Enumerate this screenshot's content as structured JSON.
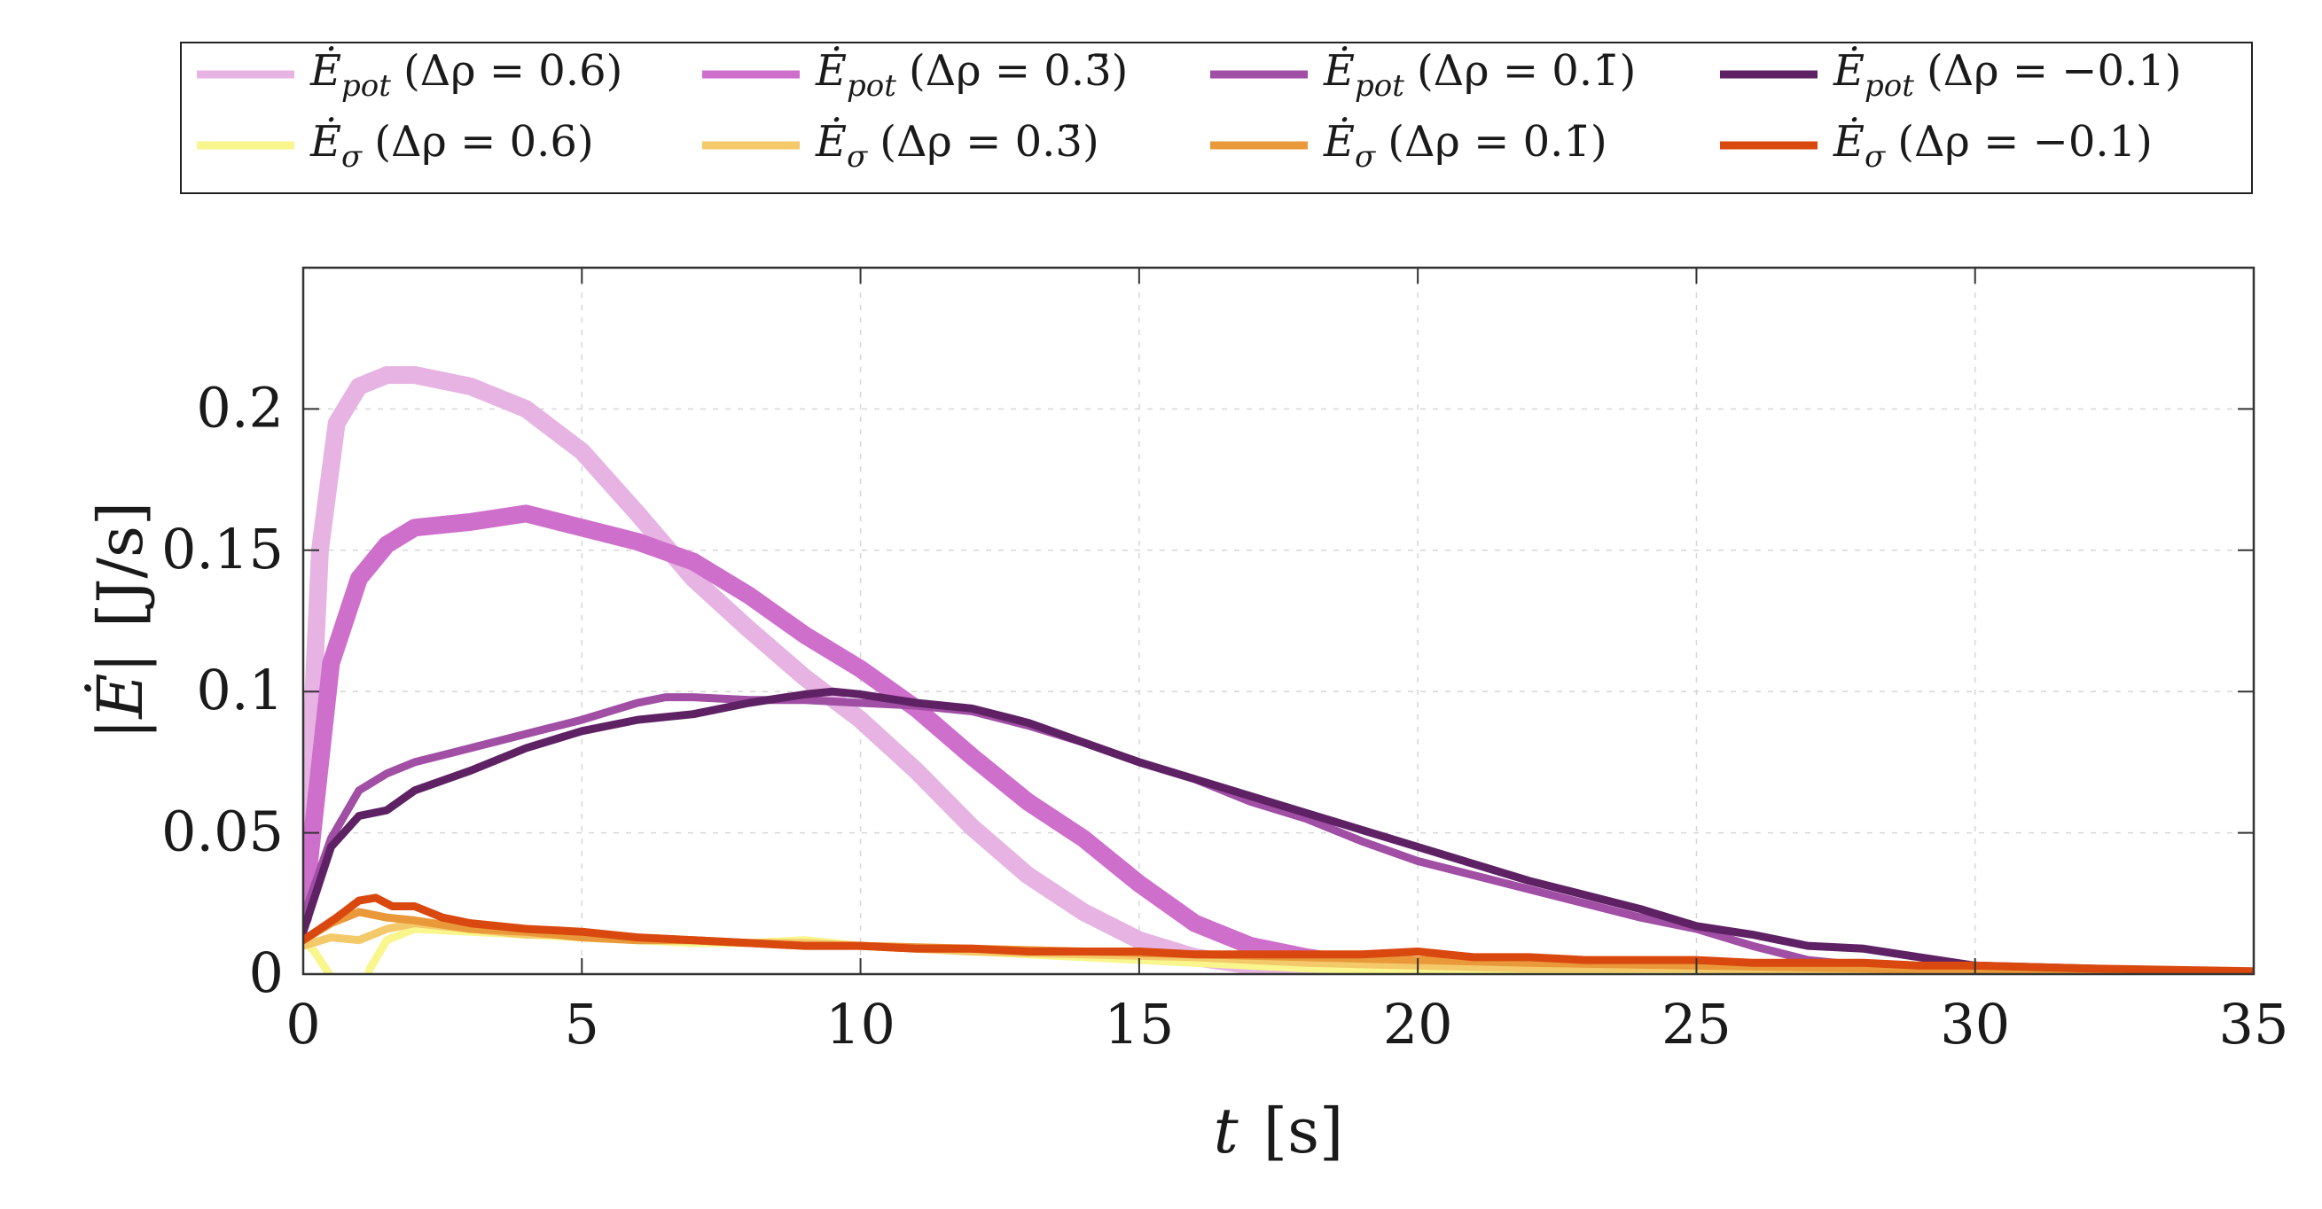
{
  "chart_data": {
    "type": "line",
    "title": "",
    "xlabel": "t [s]",
    "ylabel": "|Ė| [J/s]",
    "xlim": [
      0,
      35
    ],
    "ylim": [
      0,
      0.25
    ],
    "xticks": [
      0,
      5,
      10,
      15,
      20,
      25,
      30,
      35
    ],
    "xtick_labels": [
      "0",
      "5",
      "10",
      "15",
      "20",
      "25",
      "30",
      "35"
    ],
    "yticks": [
      0,
      0.05,
      0.1,
      0.15,
      0.2
    ],
    "ytick_labels": [
      "0",
      "0.05",
      "0.1",
      "0.15",
      "0.2"
    ],
    "grid": true,
    "legend_position": "top",
    "series": [
      {
        "name": "Ė_pot (Δρ = 0.6)",
        "color": "#e6b3e3",
        "band": true,
        "x": [
          0,
          0.3,
          0.6,
          1,
          1.5,
          2,
          3,
          4,
          5,
          6,
          7,
          8,
          9,
          10,
          11,
          12,
          13,
          14,
          15,
          16,
          17,
          18,
          19,
          20
        ],
        "y": [
          0.02,
          0.15,
          0.195,
          0.208,
          0.212,
          0.212,
          0.208,
          0.2,
          0.185,
          0.163,
          0.14,
          0.122,
          0.105,
          0.09,
          0.072,
          0.052,
          0.035,
          0.022,
          0.012,
          0.006,
          0.003,
          0.001,
          0,
          0
        ]
      },
      {
        "name": "Ė_pot (Δρ = 0.3̄)",
        "color": "#cf6fcc",
        "band": true,
        "x": [
          0,
          0.5,
          1,
          1.5,
          2,
          3,
          4,
          5,
          6,
          7,
          8,
          9,
          10,
          11,
          12,
          13,
          14,
          15,
          16,
          17,
          18,
          19,
          20
        ],
        "y": [
          0.02,
          0.11,
          0.14,
          0.152,
          0.158,
          0.16,
          0.163,
          0.158,
          0.153,
          0.146,
          0.134,
          0.12,
          0.108,
          0.094,
          0.077,
          0.061,
          0.048,
          0.032,
          0.018,
          0.01,
          0.006,
          0.003,
          0.001
        ]
      },
      {
        "name": "Ė_pot (Δρ = 0.1̄)",
        "color": "#a14ea5",
        "band": false,
        "x": [
          0,
          0.5,
          1,
          1.5,
          2,
          3,
          4,
          5,
          6,
          6.5,
          7,
          8,
          9,
          10,
          11,
          12,
          13,
          14,
          15,
          16,
          17,
          18,
          19,
          20,
          22,
          24,
          25,
          26,
          27,
          28,
          29,
          30,
          32,
          35
        ],
        "y": [
          0.02,
          0.048,
          0.065,
          0.071,
          0.075,
          0.08,
          0.085,
          0.09,
          0.096,
          0.098,
          0.098,
          0.097,
          0.097,
          0.096,
          0.095,
          0.093,
          0.088,
          0.082,
          0.075,
          0.069,
          0.061,
          0.055,
          0.047,
          0.04,
          0.03,
          0.02,
          0.016,
          0.01,
          0.005,
          0.003,
          0.002,
          0.001,
          0.001,
          0
        ]
      },
      {
        "name": "Ė_pot (Δρ = −0.1)",
        "color": "#5e2264",
        "band": false,
        "x": [
          0,
          0.5,
          1,
          1.5,
          2,
          3,
          4,
          5,
          6,
          7,
          8,
          9,
          9.5,
          10,
          11,
          12,
          13,
          14,
          15,
          16,
          17,
          18,
          19,
          20,
          22,
          24,
          25,
          26,
          27,
          28,
          29,
          30,
          32,
          35
        ],
        "y": [
          0.015,
          0.045,
          0.056,
          0.058,
          0.065,
          0.072,
          0.08,
          0.086,
          0.09,
          0.092,
          0.096,
          0.099,
          0.1,
          0.099,
          0.096,
          0.094,
          0.089,
          0.082,
          0.075,
          0.069,
          0.063,
          0.057,
          0.051,
          0.045,
          0.033,
          0.023,
          0.017,
          0.014,
          0.01,
          0.009,
          0.006,
          0.003,
          0.002,
          0
        ]
      },
      {
        "name": "Ė_σ (Δρ = 0.6)",
        "color": "#f8f68c",
        "band": false,
        "x": [
          0,
          0.2,
          0.4,
          0.6,
          0.8,
          1,
          1.2,
          1.5,
          2,
          3,
          4,
          5,
          6,
          7,
          8,
          9,
          10,
          12,
          14,
          16,
          18,
          20,
          22,
          25,
          30,
          35
        ],
        "y": [
          0.012,
          0.008,
          0.002,
          -0.004,
          -0.012,
          -0.01,
          0.002,
          0.012,
          0.016,
          0.015,
          0.014,
          0.013,
          0.012,
          0.011,
          0.011,
          0.012,
          0.01,
          0.008,
          0.006,
          0.004,
          0.002,
          0.001,
          0,
          0,
          0,
          0
        ]
      },
      {
        "name": "Ė_σ (Δρ = 0.3̄)",
        "color": "#f4c96a",
        "band": false,
        "x": [
          0,
          0.5,
          1,
          1.5,
          2,
          3,
          4,
          5,
          6,
          7,
          8,
          9,
          10,
          12,
          14,
          16,
          18,
          20,
          22,
          25,
          28,
          30,
          35
        ],
        "y": [
          0.01,
          0.013,
          0.012,
          0.016,
          0.018,
          0.016,
          0.014,
          0.014,
          0.013,
          0.012,
          0.011,
          0.011,
          0.01,
          0.008,
          0.007,
          0.006,
          0.004,
          0.003,
          0.002,
          0.002,
          0.001,
          0.001,
          0
        ]
      },
      {
        "name": "Ė_σ (Δρ = 0.1̄)",
        "color": "#e9993a",
        "band": false,
        "x": [
          0,
          0.5,
          1,
          1.5,
          2,
          3,
          4,
          5,
          6,
          7,
          8,
          9,
          10,
          12,
          14,
          16,
          18,
          20,
          22,
          25,
          28,
          30,
          35
        ],
        "y": [
          0.012,
          0.018,
          0.022,
          0.02,
          0.019,
          0.016,
          0.015,
          0.013,
          0.012,
          0.012,
          0.011,
          0.01,
          0.01,
          0.009,
          0.008,
          0.007,
          0.006,
          0.005,
          0.004,
          0.003,
          0.002,
          0.001,
          0
        ]
      },
      {
        "name": "Ė_σ (Δρ = −0.1)",
        "color": "#d9480f",
        "band": false,
        "x": [
          0,
          0.3,
          0.6,
          1,
          1.3,
          1.6,
          2,
          2.5,
          3,
          4,
          5,
          6,
          7,
          8,
          9,
          10,
          11,
          12,
          13,
          14,
          15,
          16,
          17,
          18,
          19,
          20,
          21,
          22,
          23,
          24,
          25,
          26,
          27,
          28,
          29,
          30,
          32,
          35
        ],
        "y": [
          0.012,
          0.016,
          0.02,
          0.026,
          0.027,
          0.024,
          0.024,
          0.02,
          0.018,
          0.016,
          0.015,
          0.013,
          0.012,
          0.011,
          0.01,
          0.01,
          0.009,
          0.009,
          0.008,
          0.008,
          0.008,
          0.007,
          0.007,
          0.007,
          0.007,
          0.008,
          0.006,
          0.006,
          0.005,
          0.005,
          0.005,
          0.004,
          0.004,
          0.004,
          0.003,
          0.003,
          0.002,
          0.001
        ]
      }
    ]
  },
  "legend": {
    "items": [
      {
        "sym": "Ė",
        "sub": "pot",
        "cond": "(Δρ = 0.6)",
        "color": "#e6b3e3"
      },
      {
        "sym": "Ė",
        "sub": "pot",
        "cond": "(Δρ = 0.3̄)",
        "color": "#cf6fcc"
      },
      {
        "sym": "Ė",
        "sub": "pot",
        "cond": "(Δρ = 0.1̄)",
        "color": "#a14ea5"
      },
      {
        "sym": "Ė",
        "sub": "pot",
        "cond": "(Δρ = −0.1)",
        "color": "#5e2264"
      },
      {
        "sym": "Ė",
        "sub": "σ",
        "cond": "(Δρ = 0.6)",
        "color": "#f8f68c"
      },
      {
        "sym": "Ė",
        "sub": "σ",
        "cond": "(Δρ = 0.3̄)",
        "color": "#f4c96a"
      },
      {
        "sym": "Ė",
        "sub": "σ",
        "cond": "(Δρ = 0.1̄)",
        "color": "#e9993a"
      },
      {
        "sym": "Ė",
        "sub": "σ",
        "cond": "(Δρ = −0.1)",
        "color": "#d9480f"
      }
    ]
  },
  "axes_labels": {
    "x_var": "t",
    "x_unit": "[s]",
    "y_var": "|Ė|",
    "y_unit": "[J/s]"
  }
}
